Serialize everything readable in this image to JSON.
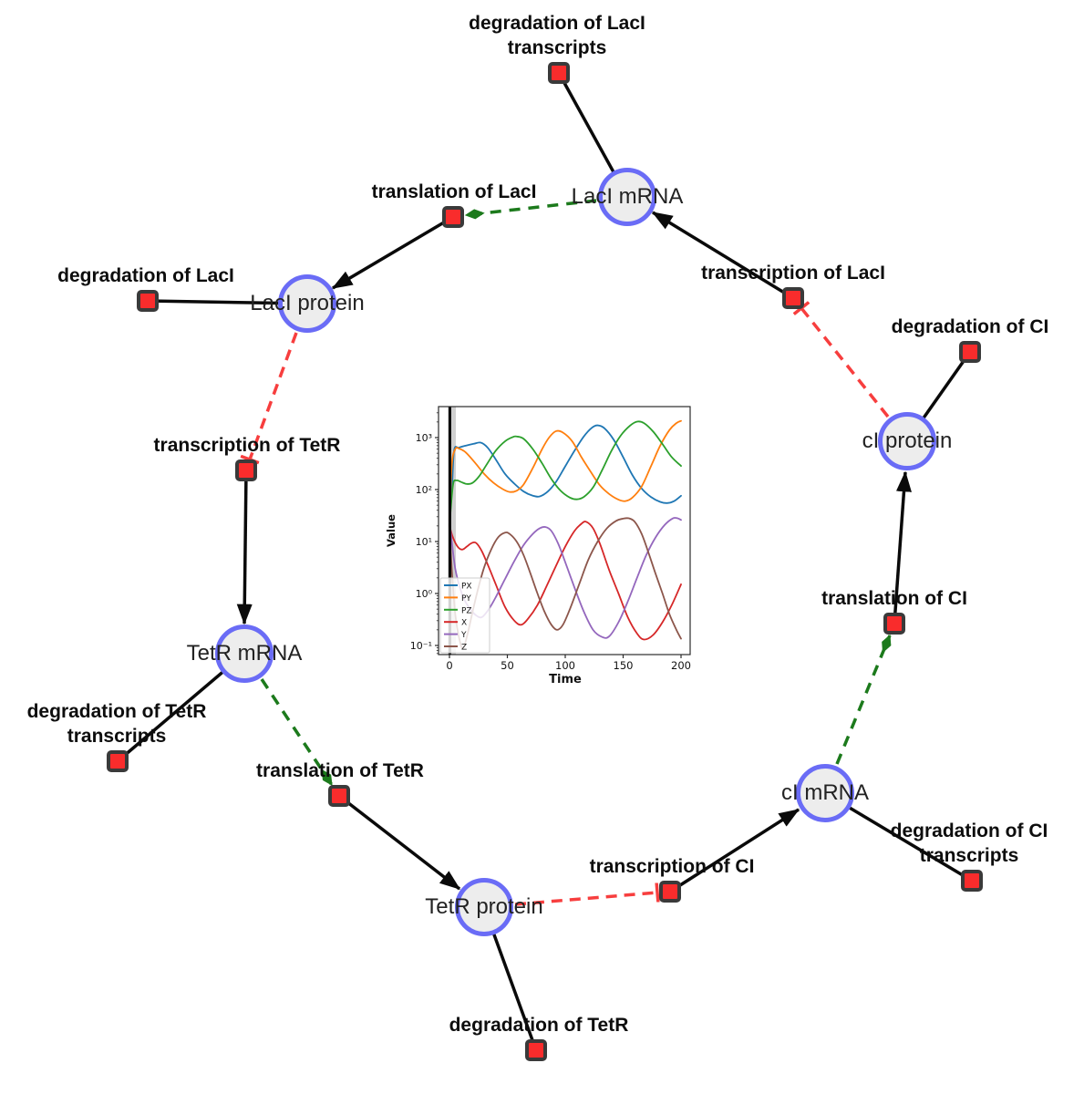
{
  "diagram": {
    "species_nodes": [
      {
        "label": "LacI mRNA"
      },
      {
        "label": "LacI protein"
      },
      {
        "label": "cI protein"
      },
      {
        "label": "TetR mRNA"
      },
      {
        "label": "cI mRNA"
      },
      {
        "label": "TetR protein"
      }
    ],
    "reaction_nodes": [
      {
        "lines": [
          "degradation of LacI",
          "transcripts"
        ]
      },
      {
        "lines": [
          "translation of LacI"
        ]
      },
      {
        "lines": [
          "degradation of LacI"
        ]
      },
      {
        "lines": [
          "transcription of LacI"
        ]
      },
      {
        "lines": [
          "degradation of CI"
        ]
      },
      {
        "lines": [
          "transcription of TetR"
        ]
      },
      {
        "lines": [
          "degradation of TetR",
          "transcripts"
        ]
      },
      {
        "lines": [
          "translation of TetR"
        ]
      },
      {
        "lines": [
          "translation of CI"
        ]
      },
      {
        "lines": [
          "degradation of CI",
          "transcripts"
        ]
      },
      {
        "lines": [
          "transcription of CI"
        ]
      },
      {
        "lines": [
          "degradation of TetR"
        ]
      }
    ],
    "colors": {
      "species_fill": "#ededed",
      "species_border": "#6a6cf6",
      "reaction_fill": "#f92c2c",
      "reaction_border": "#3a3a3a",
      "edge_black": "#0a0a0a",
      "inhibition_red": "#f73e3e",
      "modifier_green": "#1c7a1c"
    }
  },
  "chart_data": {
    "type": "line",
    "title": "",
    "xlabel": "Time",
    "ylabel": "Value",
    "y_scale": "log",
    "grid": false,
    "legend_position": "lower left",
    "x_ticks": [
      0,
      50,
      100,
      150,
      200
    ],
    "y_ticks": [
      {
        "value": 1000,
        "label": "10³"
      },
      {
        "value": 100,
        "label": "10²"
      },
      {
        "value": 10,
        "label": "10¹"
      },
      {
        "value": 1,
        "label": "10⁰"
      },
      {
        "value": 0.1,
        "label": "10⁻¹"
      }
    ],
    "xlim": [
      -9.5,
      210
    ],
    "ylim": [
      0.067,
      4000
    ],
    "event_line_x": 0,
    "series": [
      {
        "name": "PX",
        "color": "#1f77b4",
        "points": [
          [
            0,
            25
          ],
          [
            2,
            90
          ],
          [
            4,
            560
          ],
          [
            8,
            640
          ],
          [
            14,
            700
          ],
          [
            21,
            760
          ],
          [
            27,
            800
          ],
          [
            33,
            640
          ],
          [
            40,
            380
          ],
          [
            48,
            200
          ],
          [
            56,
            130
          ],
          [
            64,
            92
          ],
          [
            72,
            76
          ],
          [
            78,
            74
          ],
          [
            85,
            92
          ],
          [
            92,
            140
          ],
          [
            100,
            280
          ],
          [
            108,
            560
          ],
          [
            116,
            1050
          ],
          [
            123,
            1550
          ],
          [
            128,
            1720
          ],
          [
            134,
            1500
          ],
          [
            142,
            900
          ],
          [
            150,
            420
          ],
          [
            158,
            190
          ],
          [
            166,
            105
          ],
          [
            174,
            72
          ],
          [
            182,
            58
          ],
          [
            188,
            55
          ],
          [
            194,
            60
          ],
          [
            200,
            76
          ]
        ]
      },
      {
        "name": "PY",
        "color": "#ff7f0e",
        "points": [
          [
            0,
            25
          ],
          [
            2,
            300
          ],
          [
            5,
            600
          ],
          [
            8,
            620
          ],
          [
            14,
            520
          ],
          [
            22,
            330
          ],
          [
            30,
            200
          ],
          [
            38,
            135
          ],
          [
            46,
            102
          ],
          [
            52,
            90
          ],
          [
            58,
            95
          ],
          [
            64,
            125
          ],
          [
            72,
            260
          ],
          [
            80,
            600
          ],
          [
            86,
            1000
          ],
          [
            92,
            1330
          ],
          [
            98,
            1250
          ],
          [
            106,
            850
          ],
          [
            114,
            420
          ],
          [
            122,
            220
          ],
          [
            130,
            120
          ],
          [
            138,
            82
          ],
          [
            146,
            64
          ],
          [
            152,
            60
          ],
          [
            158,
            70
          ],
          [
            166,
            115
          ],
          [
            174,
            280
          ],
          [
            182,
            700
          ],
          [
            190,
            1400
          ],
          [
            196,
            1900
          ],
          [
            200,
            2100
          ]
        ]
      },
      {
        "name": "PZ",
        "color": "#2ca02c",
        "points": [
          [
            0,
            20
          ],
          [
            3,
            120
          ],
          [
            6,
            150
          ],
          [
            10,
            140
          ],
          [
            15,
            128
          ],
          [
            20,
            135
          ],
          [
            26,
            185
          ],
          [
            32,
            300
          ],
          [
            40,
            560
          ],
          [
            48,
            850
          ],
          [
            55,
            1030
          ],
          [
            58,
            1050
          ],
          [
            64,
            950
          ],
          [
            72,
            600
          ],
          [
            80,
            320
          ],
          [
            88,
            160
          ],
          [
            96,
            95
          ],
          [
            104,
            70
          ],
          [
            110,
            65
          ],
          [
            116,
            72
          ],
          [
            124,
            110
          ],
          [
            132,
            240
          ],
          [
            140,
            560
          ],
          [
            148,
            1100
          ],
          [
            156,
            1700
          ],
          [
            162,
            2030
          ],
          [
            168,
            1900
          ],
          [
            176,
            1300
          ],
          [
            184,
            750
          ],
          [
            192,
            420
          ],
          [
            200,
            285
          ]
        ]
      },
      {
        "name": "X",
        "color": "#d62728",
        "points": [
          [
            0,
            20
          ],
          [
            3,
            12
          ],
          [
            7,
            8
          ],
          [
            11,
            7
          ],
          [
            15,
            8
          ],
          [
            19,
            9.3
          ],
          [
            23,
            9.4
          ],
          [
            28,
            6.5
          ],
          [
            34,
            3.2
          ],
          [
            40,
            1.5
          ],
          [
            48,
            0.55
          ],
          [
            56,
            0.3
          ],
          [
            62,
            0.25
          ],
          [
            68,
            0.33
          ],
          [
            76,
            0.6
          ],
          [
            84,
            1.4
          ],
          [
            92,
            3.4
          ],
          [
            100,
            8
          ],
          [
            108,
            16
          ],
          [
            114,
            22
          ],
          [
            118,
            24
          ],
          [
            124,
            18
          ],
          [
            130,
            9
          ],
          [
            138,
            2.8
          ],
          [
            146,
            1
          ],
          [
            154,
            0.35
          ],
          [
            162,
            0.17
          ],
          [
            168,
            0.13
          ],
          [
            176,
            0.16
          ],
          [
            184,
            0.28
          ],
          [
            192,
            0.6
          ],
          [
            200,
            1.5
          ]
        ]
      },
      {
        "name": "Y",
        "color": "#9467bd",
        "points": [
          [
            0,
            25
          ],
          [
            2,
            10
          ],
          [
            5,
            3
          ],
          [
            9,
            1.3
          ],
          [
            13,
            0.75
          ],
          [
            18,
            0.5
          ],
          [
            23,
            0.38
          ],
          [
            28,
            0.35
          ],
          [
            34,
            0.5
          ],
          [
            40,
            0.85
          ],
          [
            48,
            1.9
          ],
          [
            56,
            4.2
          ],
          [
            64,
            8.5
          ],
          [
            72,
            14
          ],
          [
            78,
            18
          ],
          [
            83,
            19
          ],
          [
            88,
            16
          ],
          [
            94,
            9
          ],
          [
            100,
            4
          ],
          [
            108,
            1.3
          ],
          [
            116,
            0.45
          ],
          [
            124,
            0.2
          ],
          [
            132,
            0.145
          ],
          [
            138,
            0.15
          ],
          [
            146,
            0.28
          ],
          [
            154,
            0.7
          ],
          [
            162,
            2
          ],
          [
            170,
            5.5
          ],
          [
            178,
            12
          ],
          [
            186,
            21
          ],
          [
            193,
            28
          ],
          [
            197,
            28
          ],
          [
            200,
            26
          ]
        ]
      },
      {
        "name": "Z",
        "color": "#8c564b",
        "points": [
          [
            0,
            22
          ],
          [
            2,
            3
          ],
          [
            5,
            0.4
          ],
          [
            9,
            0.12
          ],
          [
            12,
            0.09
          ],
          [
            16,
            0.18
          ],
          [
            20,
            0.45
          ],
          [
            25,
            1.3
          ],
          [
            30,
            3.2
          ],
          [
            36,
            7
          ],
          [
            42,
            12
          ],
          [
            48,
            14.8
          ],
          [
            52,
            14
          ],
          [
            58,
            10
          ],
          [
            64,
            5.5
          ],
          [
            70,
            2.4
          ],
          [
            76,
            1
          ],
          [
            82,
            0.45
          ],
          [
            88,
            0.25
          ],
          [
            93,
            0.2
          ],
          [
            98,
            0.25
          ],
          [
            104,
            0.5
          ],
          [
            112,
            1.5
          ],
          [
            120,
            4.5
          ],
          [
            128,
            10
          ],
          [
            136,
            18
          ],
          [
            144,
            25
          ],
          [
            150,
            27.6
          ],
          [
            155,
            28
          ],
          [
            160,
            24
          ],
          [
            166,
            14
          ],
          [
            172,
            6
          ],
          [
            178,
            2.4
          ],
          [
            184,
            1
          ],
          [
            190,
            0.4
          ],
          [
            196,
            0.2
          ],
          [
            200,
            0.135
          ]
        ]
      }
    ]
  }
}
